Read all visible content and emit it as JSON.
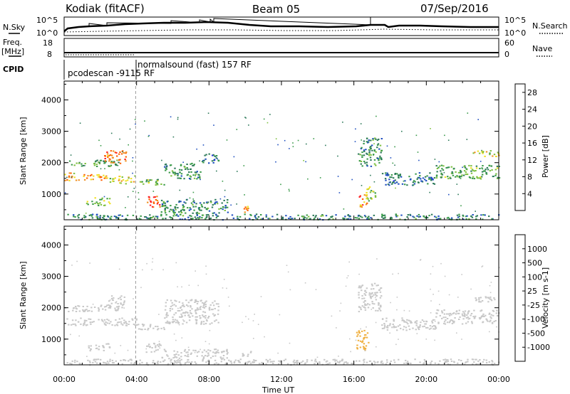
{
  "header": {
    "station": "Kodiak (fitACF)",
    "beam": "Beam 05",
    "date": "07/Sep/2016"
  },
  "labels": {
    "nsky": "N.Sky",
    "nsearch": "N.Search",
    "freq_top": "Freq.",
    "freq_unit": "[MHz]",
    "nave": "Nave",
    "cpid": "CPID",
    "cpid_1": "pcodescan -9115 RF",
    "cpid_2": "normalsound (fast) 157 RF",
    "time_axis": "Time UT"
  },
  "noise_panel": {
    "left_ticks": [
      "10^5",
      "10^0"
    ],
    "right_ticks": [
      "10^5",
      "10^0"
    ]
  },
  "freq_panel": {
    "left_ticks": [
      "18",
      "8"
    ],
    "right_ticks": [
      "60",
      "0"
    ]
  },
  "colors": {
    "power": [
      "#1a1aff",
      "#2050c0",
      "#2e7a5a",
      "#3a9a4a",
      "#7fc040",
      "#f0e020",
      "#f09020",
      "#ff6000",
      "#ff2020"
    ],
    "velocity": [
      "#ff2020",
      "#ff5010",
      "#ff9010",
      "#f0b040",
      "#c8c8c8",
      "#c8c8c8",
      "#80d040",
      "#20a020",
      "#2050c0",
      "#1a1aff"
    ]
  },
  "chart_data": [
    {
      "type": "heatmap",
      "title": "",
      "xlabel": "",
      "ylabel": "Slant Range [km]",
      "colorbar_label": "Power [dB]",
      "colorbar_ticks": [
        "28",
        "24",
        "20",
        "16",
        "12",
        "8",
        "4"
      ],
      "colorbar_range": [
        0,
        30
      ],
      "x_ticks": [
        "00:00",
        "04:00",
        "08:00",
        "12:00",
        "16:00",
        "20:00",
        "00:00"
      ],
      "xlim": [
        0,
        24
      ],
      "y_ticks": [
        "4000",
        "3000",
        "2000",
        "1000"
      ],
      "ylim": [
        180,
        4600
      ],
      "bands": [
        {
          "x0": 0.0,
          "x1": 0.8,
          "r0": 1450,
          "r1": 1700,
          "v": 20
        },
        {
          "x0": 0.8,
          "x1": 2.5,
          "r0": 1450,
          "r1": 1650,
          "v": 21
        },
        {
          "x0": 2.5,
          "x1": 4.0,
          "r0": 1350,
          "r1": 1600,
          "v": 18
        },
        {
          "x0": 4.0,
          "x1": 5.5,
          "r0": 1300,
          "r1": 1500,
          "v": 13
        },
        {
          "x0": 5.5,
          "x1": 7.5,
          "r0": 1500,
          "r1": 2000,
          "v": 10
        },
        {
          "x0": 7.5,
          "x1": 8.5,
          "r0": 2000,
          "r1": 2300,
          "v": 8
        },
        {
          "x0": 0.0,
          "x1": 3.0,
          "r0": 1900,
          "r1": 2100,
          "v": 12
        },
        {
          "x0": 2.2,
          "x1": 3.5,
          "r0": 2000,
          "r1": 2400,
          "v": 24
        },
        {
          "x0": 1.2,
          "x1": 2.5,
          "r0": 650,
          "r1": 900,
          "v": 14
        },
        {
          "x0": 4.5,
          "x1": 5.3,
          "r0": 600,
          "r1": 950,
          "v": 27
        },
        {
          "x0": 5.3,
          "x1": 9.0,
          "r0": 400,
          "r1": 850,
          "v": 10
        },
        {
          "x0": 9.8,
          "x1": 10.3,
          "r0": 400,
          "r1": 650,
          "v": 22
        },
        {
          "x0": 16.2,
          "x1": 16.7,
          "r0": 600,
          "r1": 1000,
          "v": 23
        },
        {
          "x0": 16.6,
          "x1": 17.2,
          "r0": 800,
          "r1": 1300,
          "v": 15
        },
        {
          "x0": 16.2,
          "x1": 17.5,
          "r0": 1900,
          "r1": 2800,
          "v": 10
        },
        {
          "x0": 17.5,
          "x1": 20.5,
          "r0": 1300,
          "r1": 1700,
          "v": 8
        },
        {
          "x0": 20.5,
          "x1": 24.0,
          "r0": 1500,
          "r1": 1950,
          "v": 12
        },
        {
          "x0": 22.5,
          "x1": 24.0,
          "r0": 2200,
          "r1": 2400,
          "v": 18
        },
        {
          "x0": 0.0,
          "x1": 24.0,
          "r0": 200,
          "r1": 380,
          "v": 9
        }
      ]
    },
    {
      "type": "heatmap",
      "title": "",
      "xlabel": "Time UT",
      "ylabel": "Slant Range [km]",
      "colorbar_label": "Velocity [m s-1]",
      "colorbar_ticks": [
        "1000",
        "500",
        "100",
        "25",
        "-25",
        "-100",
        "-500",
        "-1000"
      ],
      "colorbar_range": [
        -1200,
        1200
      ],
      "x_ticks": [
        "00:00",
        "04:00",
        "08:00",
        "12:00",
        "16:00",
        "20:00",
        "00:00"
      ],
      "xlim": [
        0,
        24
      ],
      "y_ticks": [
        "4000",
        "3000",
        "2000",
        "1000"
      ],
      "ylim": [
        180,
        4600
      ],
      "bands": [
        {
          "x0": 0.0,
          "x1": 4.0,
          "r0": 1450,
          "r1": 1700,
          "v": 0
        },
        {
          "x0": 4.0,
          "x1": 5.5,
          "r0": 1300,
          "r1": 1500,
          "v": 0
        },
        {
          "x0": 5.5,
          "x1": 8.5,
          "r0": 1500,
          "r1": 2300,
          "v": 10
        },
        {
          "x0": 0.0,
          "x1": 3.0,
          "r0": 1900,
          "r1": 2100,
          "v": 0
        },
        {
          "x0": 2.3,
          "x1": 3.3,
          "r0": 2000,
          "r1": 2400,
          "v": -150
        },
        {
          "x0": 1.2,
          "x1": 2.5,
          "r0": 650,
          "r1": 900,
          "v": 0
        },
        {
          "x0": 4.5,
          "x1": 5.3,
          "r0": 600,
          "r1": 950,
          "v": 150
        },
        {
          "x0": 5.3,
          "x1": 9.0,
          "r0": 400,
          "r1": 700,
          "v": 120
        },
        {
          "x0": 9.8,
          "x1": 10.3,
          "r0": 400,
          "r1": 650,
          "v": -80
        },
        {
          "x0": 16.1,
          "x1": 16.8,
          "r0": 600,
          "r1": 1300,
          "v": -300
        },
        {
          "x0": 16.2,
          "x1": 17.5,
          "r0": 1900,
          "r1": 2800,
          "v": 0
        },
        {
          "x0": 17.5,
          "x1": 20.5,
          "r0": 1300,
          "r1": 1700,
          "v": 0
        },
        {
          "x0": 20.5,
          "x1": 24.0,
          "r0": 1500,
          "r1": 1950,
          "v": 0
        },
        {
          "x0": 22.5,
          "x1": 24.0,
          "r0": 2200,
          "r1": 2400,
          "v": 0
        },
        {
          "x0": 0.0,
          "x1": 24.0,
          "r0": 200,
          "r1": 380,
          "v": -40
        }
      ]
    }
  ]
}
